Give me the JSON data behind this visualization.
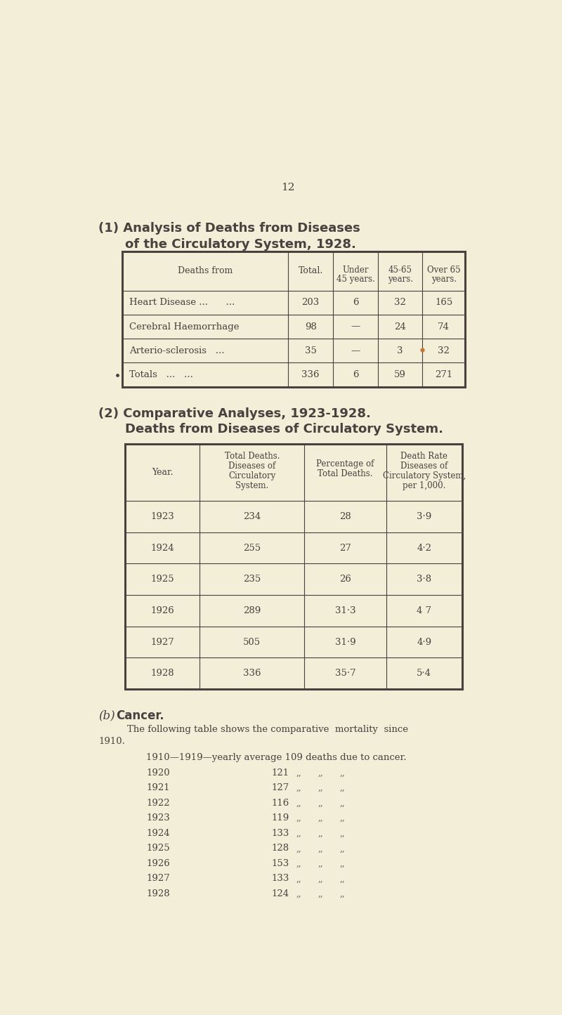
{
  "bg_color": "#f2eed8",
  "text_color": "#4a4040",
  "page_number": "12",
  "section1_title_line1": "(1) Analysis of Deaths from Diseases",
  "section1_title_line2": "of the Circulatory System, 1928.",
  "table1_rows": [
    [
      "Heart Disease ...      ...",
      "203",
      "6",
      "32",
      "165"
    ],
    [
      "Cerebral Haemorrhage",
      "98",
      "—",
      "24",
      "74"
    ],
    [
      "Arterio-sclerosis   ...",
      "35",
      "—",
      "3",
      "32"
    ],
    [
      "Totals   ...   ...",
      "336",
      "6",
      "59",
      "271"
    ]
  ],
  "section2_title_line1": "(2) Comparative Analyses, 1923-1928.",
  "section2_title_line2": "Deaths from Diseases of Circulatory System.",
  "table2_rows": [
    [
      "1923",
      "234",
      "28",
      "3·9"
    ],
    [
      "1924",
      "255",
      "27",
      "4·2"
    ],
    [
      "1925",
      "235",
      "26",
      "3·8"
    ],
    [
      "1926",
      "289",
      "31·3",
      "4 7"
    ],
    [
      "1927",
      "505",
      "31·9",
      "4·9"
    ],
    [
      "1928",
      "336",
      "35·7",
      "5·4"
    ]
  ],
  "cancer_header": "1910—1919—yearly average 109 deaths due to cancer.",
  "cancer_rows": [
    [
      "1920",
      "121"
    ],
    [
      "1921",
      "127"
    ],
    [
      "1922",
      "116"
    ],
    [
      "1923",
      "119"
    ],
    [
      "1924",
      "133"
    ],
    [
      "1925",
      "128"
    ],
    [
      "1926",
      "153"
    ],
    [
      "1927",
      "133"
    ],
    [
      "1928",
      "124"
    ]
  ],
  "orange_dot_color": "#c87830"
}
